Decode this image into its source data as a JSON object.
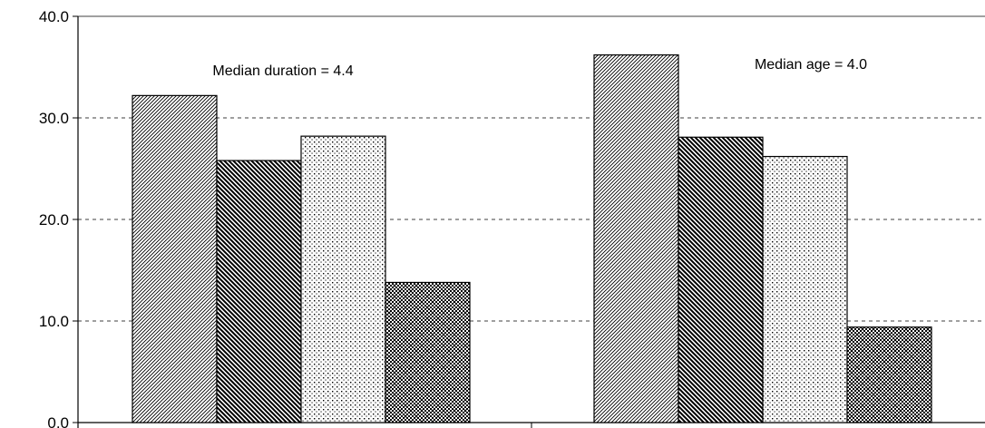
{
  "chart_data": {
    "type": "bar",
    "title": "",
    "xlabel": "",
    "ylabel": "",
    "ylim": [
      0,
      40
    ],
    "y_ticks": [
      "0.0",
      "10.0",
      "20.0",
      "30.0",
      "40.0"
    ],
    "grid": "horizontal dashed",
    "legend": "none",
    "groups": [
      {
        "values": [
          32.2,
          25.8,
          28.2,
          13.8
        ],
        "annotation": "Median duration = 4.4"
      },
      {
        "values": [
          36.2,
          28.1,
          26.2,
          9.4
        ],
        "annotation": "Median age = 4.0"
      }
    ],
    "series_patterns": [
      "diagonal-fine",
      "diagonal-bold",
      "dots",
      "checker-cross"
    ]
  }
}
